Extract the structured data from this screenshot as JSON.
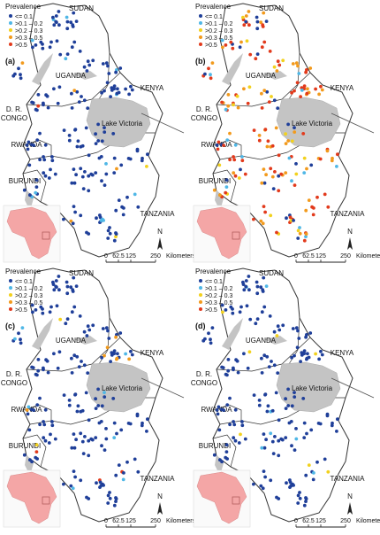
{
  "legend": {
    "title": "Prevalence",
    "items": [
      {
        "label": "<= 0.1",
        "color": "#1f3f99"
      },
      {
        "label": ">0.1 – 0.2",
        "color": "#4fb7e6"
      },
      {
        "label": ">0.2 – 0.3",
        "color": "#f2d11d"
      },
      {
        "label": ">0.3 – 0.5",
        "color": "#f29a1d"
      },
      {
        "label": ">0.5",
        "color": "#e23a1c"
      }
    ]
  },
  "panels": [
    {
      "id": "a",
      "label": "(a)"
    },
    {
      "id": "b",
      "label": "(b)"
    },
    {
      "id": "c",
      "label": "(c)"
    },
    {
      "id": "d",
      "label": "(d)"
    }
  ],
  "place_names": {
    "sudan": "SUDAN",
    "uganda": "UGANDA",
    "kenya": "KENYA",
    "drc_line1": "D. R.",
    "drc_line2": "CONGO",
    "rwanda": "RWANDA",
    "burundi": "BURUNDI",
    "tanzania": "TANZANIA",
    "lake": "Lake Victoria"
  },
  "north_label": "N",
  "scalebar": {
    "ticks": [
      "0",
      "62.5",
      "125",
      "250"
    ],
    "unit": "Kilometers"
  },
  "colors": {
    "lake": "#c4c4c4",
    "inset_land": "#f4a6a6",
    "border": "#333333"
  }
}
